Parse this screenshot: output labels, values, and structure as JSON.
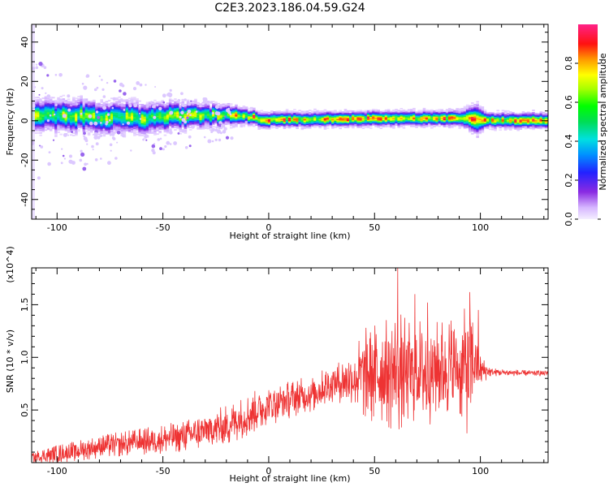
{
  "chart_data": [
    {
      "type": "heatmap",
      "title": "C2E3.2023.186.04.59.G24",
      "xlabel": "Height of straight line (km)",
      "ylabel": "Frequency (Hz)",
      "xlim": [
        -112,
        132
      ],
      "ylim": [
        -50,
        49
      ],
      "xticks": [
        -100,
        -50,
        0,
        50,
        100
      ],
      "yticks": [
        -40,
        -20,
        0,
        20,
        40
      ],
      "colorbar": {
        "label": "Normalized spectral amplitude",
        "range": [
          0.0,
          1.0
        ],
        "ticks": [
          0.0,
          0.2,
          0.4,
          0.6,
          0.8
        ],
        "colormap": "rainbow (violet-blue-cyan-green-yellow-red-magenta)"
      },
      "band": {
        "center_freq_hz": [
          [
            -110,
            2.5
          ],
          [
            -90,
            2.5
          ],
          [
            -80,
            1.0
          ],
          [
            -70,
            2.0
          ],
          [
            -60,
            1.0
          ],
          [
            -50,
            2.0
          ],
          [
            -40,
            2.5
          ],
          [
            -20,
            2.5
          ],
          [
            -10,
            1.5
          ],
          [
            0,
            0.5
          ],
          [
            20,
            0.5
          ],
          [
            50,
            1.0
          ],
          [
            80,
            1.0
          ],
          [
            95,
            1.0
          ],
          [
            100,
            0.0
          ],
          [
            132,
            0.0
          ]
        ],
        "half_width_hz": [
          [
            -110,
            6
          ],
          [
            -80,
            6
          ],
          [
            -60,
            6
          ],
          [
            -40,
            5
          ],
          [
            -20,
            4
          ],
          [
            -10,
            3
          ],
          [
            0,
            3
          ],
          [
            50,
            3
          ],
          [
            90,
            3
          ],
          [
            98,
            6
          ],
          [
            102,
            3
          ],
          [
            132,
            3
          ]
        ]
      }
    },
    {
      "type": "line",
      "xlabel": "Height of straight line (km)",
      "ylabel": "SNR (10 * v/v)",
      "y_multiplier": "(x10^4)",
      "xlim": [
        -112,
        132
      ],
      "ylim": [
        0,
        18500
      ],
      "xticks": [
        -100,
        -50,
        0,
        50,
        100
      ],
      "yticks": [
        5000,
        10000,
        15000
      ],
      "ytick_labels": [
        "0.5",
        "1.0",
        "1.5"
      ],
      "color": "#ee3333",
      "envelope": {
        "x": [
          -112,
          -100,
          -80,
          -60,
          -40,
          -20,
          -10,
          0,
          10,
          20,
          30,
          40,
          45,
          50,
          55,
          60,
          65,
          70,
          75,
          80,
          85,
          90,
          95,
          98,
          100,
          105,
          120,
          132
        ],
        "mean": [
          500,
          800,
          1500,
          2000,
          2500,
          3500,
          4500,
          5500,
          6000,
          6500,
          7500,
          8000,
          8500,
          8500,
          8500,
          8800,
          8600,
          8800,
          8600,
          9000,
          9200,
          8800,
          9000,
          9500,
          8800,
          8600,
          8500,
          8500
        ],
        "amplitude": [
          600,
          900,
          1100,
          1300,
          1500,
          2000,
          2000,
          2000,
          1800,
          1800,
          1800,
          2500,
          4500,
          5000,
          5000,
          6500,
          5000,
          5000,
          5500,
          4500,
          5000,
          4500,
          7000,
          3000,
          1500,
          400,
          300,
          300
        ]
      },
      "peaks": [
        [
          61,
          18500
        ],
        [
          69,
          16000
        ],
        [
          75,
          15200
        ],
        [
          95,
          16200
        ],
        [
          99,
          14500
        ]
      ]
    }
  ]
}
